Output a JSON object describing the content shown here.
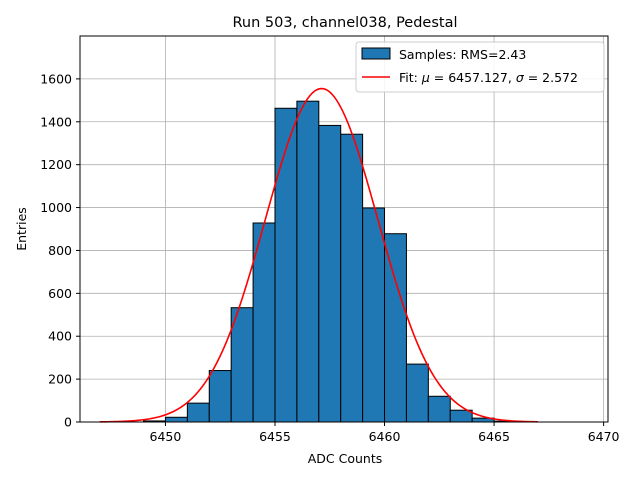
{
  "chart_data": {
    "type": "bar",
    "title": "Run 503, channel038, Pedestal",
    "xlabel": "ADC Counts",
    "ylabel": "Entries",
    "xlim": [
      6446.1,
      6470.2
    ],
    "ylim": [
      0,
      1800
    ],
    "xticks": [
      6450,
      6455,
      6460,
      6465,
      6470
    ],
    "yticks": [
      0,
      200,
      400,
      600,
      800,
      1000,
      1200,
      1400,
      1600
    ],
    "grid": true,
    "legend_position": "top-right",
    "bar_color": "#1f77b4",
    "fit_color": "#ff0000",
    "bins": [
      {
        "left": 6449,
        "right": 6450,
        "count": 5
      },
      {
        "left": 6450,
        "right": 6451,
        "count": 22
      },
      {
        "left": 6451,
        "right": 6452,
        "count": 88
      },
      {
        "left": 6452,
        "right": 6453,
        "count": 240
      },
      {
        "left": 6453,
        "right": 6454,
        "count": 533
      },
      {
        "left": 6454,
        "right": 6455,
        "count": 928
      },
      {
        "left": 6455,
        "right": 6456,
        "count": 1463
      },
      {
        "left": 6456,
        "right": 6457,
        "count": 1496
      },
      {
        "left": 6457,
        "right": 6458,
        "count": 1383
      },
      {
        "left": 6458,
        "right": 6459,
        "count": 1342
      },
      {
        "left": 6459,
        "right": 6460,
        "count": 998
      },
      {
        "left": 6460,
        "right": 6461,
        "count": 878
      },
      {
        "left": 6461,
        "right": 6462,
        "count": 270
      },
      {
        "left": 6462,
        "right": 6463,
        "count": 120
      },
      {
        "left": 6463,
        "right": 6464,
        "count": 55
      },
      {
        "left": 6464,
        "right": 6465,
        "count": 18
      },
      {
        "left": 6465,
        "right": 6466,
        "count": 4
      }
    ],
    "fit": {
      "mu": 6457.127,
      "sigma": 2.572,
      "amplitude": 1555,
      "x_range": [
        6447,
        6467
      ]
    },
    "legend": {
      "hist_label": "Samples: RMS=2.43",
      "fit_label_prefix": "Fit: ",
      "fit_mu_symbol": "μ",
      "fit_mu_text": " = 6457.127, ",
      "fit_sigma_symbol": "σ",
      "fit_sigma_text": " = 2.572"
    }
  }
}
